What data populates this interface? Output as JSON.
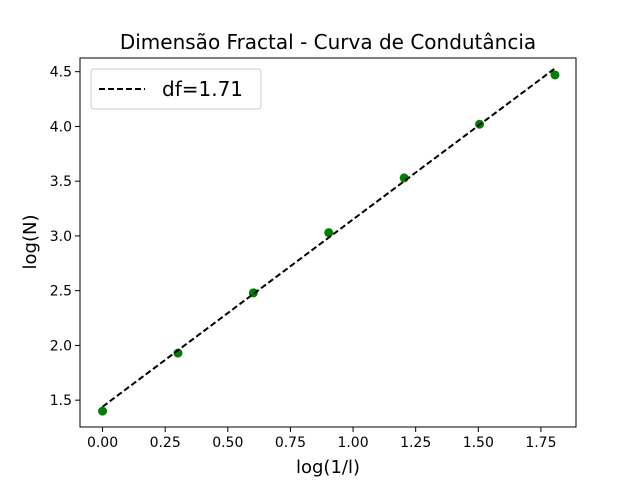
{
  "chart_data": {
    "type": "scatter",
    "title": "Dimensão Fractal - Curva de Condutância",
    "xlabel": "log(1/l)",
    "ylabel": "log(N)",
    "xlim": [
      -0.09,
      1.89
    ],
    "ylim": [
      1.255,
      4.625
    ],
    "xticks": [
      0.0,
      0.25,
      0.5,
      0.75,
      1.0,
      1.25,
      1.5,
      1.75
    ],
    "xtick_labels": [
      "0.00",
      "0.25",
      "0.50",
      "0.75",
      "1.00",
      "1.25",
      "1.50",
      "1.75"
    ],
    "yticks": [
      1.5,
      2.0,
      2.5,
      3.0,
      3.5,
      4.0,
      4.5
    ],
    "ytick_labels": [
      "1.5",
      "2.0",
      "2.5",
      "3.0",
      "3.5",
      "4.0",
      "4.5"
    ],
    "grid": false,
    "legend_position": "top-left",
    "series": [
      {
        "kind": "scatter",
        "color": "#008000",
        "x": [
          0.0,
          0.301,
          0.602,
          0.903,
          1.204,
          1.505,
          1.806
        ],
        "y": [
          1.4,
          1.93,
          2.48,
          3.03,
          3.53,
          4.02,
          4.47
        ]
      },
      {
        "kind": "fit-line",
        "name": "df=1.71",
        "style": "dashed",
        "color": "#000000",
        "x": [
          0.0,
          1.806
        ],
        "y": [
          1.44,
          4.53
        ]
      }
    ]
  }
}
